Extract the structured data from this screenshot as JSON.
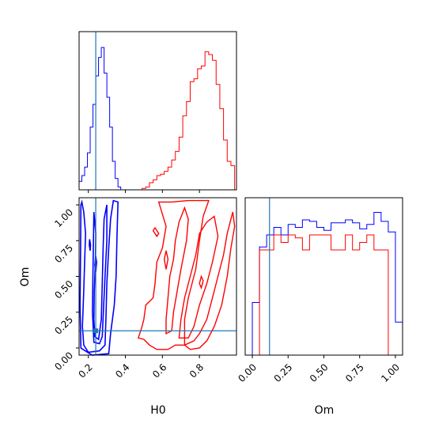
{
  "colors": {
    "series_a": "#0000ff",
    "series_b": "#ff0000",
    "truth": "#1f77b4"
  },
  "chart_data": [
    {
      "type": "histogram",
      "panel": "top-left",
      "x_variable": "H0",
      "xlim": [
        0.15,
        1.0
      ],
      "y_tick_labels_shown": false,
      "truth_line_x": 0.24,
      "bin_edges": [
        0.15,
        0.165,
        0.18,
        0.195,
        0.21,
        0.225,
        0.24,
        0.255,
        0.27,
        0.285,
        0.3,
        0.315,
        0.33,
        0.345,
        0.36,
        0.375
      ],
      "series": [
        {
          "color": "blue",
          "counts": [
            0.06,
            0.1,
            0.16,
            0.26,
            0.44,
            0.6,
            0.8,
            0.93,
            1.0,
            0.82,
            0.65,
            0.44,
            0.2,
            0.08,
            0.02
          ]
        },
        {
          "color": "red",
          "bin_edges": [
            0.49,
            0.51,
            0.53,
            0.55,
            0.57,
            0.59,
            0.61,
            0.63,
            0.65,
            0.67,
            0.69,
            0.71,
            0.73,
            0.75,
            0.77,
            0.79,
            0.81,
            0.83,
            0.85,
            0.87,
            0.89,
            0.91,
            0.93,
            0.95,
            0.97,
            0.99
          ],
          "counts": [
            0.01,
            0.02,
            0.05,
            0.07,
            0.1,
            0.11,
            0.13,
            0.16,
            0.21,
            0.27,
            0.37,
            0.52,
            0.62,
            0.76,
            0.78,
            0.85,
            0.87,
            0.97,
            0.95,
            0.91,
            0.74,
            0.57,
            0.35,
            0.2,
            0.17
          ]
        }
      ]
    },
    {
      "type": "contour",
      "panel": "bottom-left",
      "xlabel": "H0",
      "ylabel": "Om",
      "xlim": [
        0.15,
        1.0
      ],
      "ylim": [
        -0.05,
        1.05
      ],
      "x_ticks": [
        0.2,
        0.4,
        0.6,
        0.8
      ],
      "x_tick_labels": [
        "0.2",
        "0.4",
        "0.6",
        "0.8"
      ],
      "y_ticks": [
        0.0,
        0.25,
        0.5,
        0.75,
        1.0
      ],
      "y_tick_labels": [
        "0.00",
        "0.25",
        "0.50",
        "0.75",
        "1.00"
      ],
      "truth_point": [
        0.24,
        0.12
      ],
      "series": [
        {
          "color": "blue",
          "region": {
            "H0": [
              0.16,
              0.36
            ],
            "Om": [
              -0.03,
              1.03
            ]
          }
        },
        {
          "color": "red",
          "region": {
            "H0": [
              0.47,
              0.99
            ],
            "Om": [
              -0.01,
              1.03
            ]
          }
        }
      ]
    },
    {
      "type": "histogram",
      "panel": "bottom-right",
      "xlabel": "Om",
      "xlim": [
        -0.05,
        1.05
      ],
      "x_ticks": [
        0.0,
        0.25,
        0.5,
        0.75,
        1.0
      ],
      "x_tick_labels": [
        "0.00",
        "0.25",
        "0.50",
        "0.75",
        "1.00"
      ],
      "truth_line_x": 0.12,
      "bin_edges": [
        -0.05,
        0.0,
        0.05,
        0.1,
        0.15,
        0.2,
        0.25,
        0.3,
        0.35,
        0.4,
        0.45,
        0.5,
        0.55,
        0.6,
        0.65,
        0.7,
        0.75,
        0.8,
        0.85,
        0.9,
        0.95,
        1.0,
        1.05
      ],
      "series": [
        {
          "color": "blue",
          "counts": [
            0.0,
            0.35,
            0.72,
            0.8,
            0.85,
            0.8,
            0.87,
            0.85,
            0.9,
            0.89,
            0.85,
            0.83,
            0.88,
            0.88,
            0.9,
            0.88,
            0.84,
            0.87,
            0.95,
            0.89,
            0.82,
            0.22
          ]
        },
        {
          "color": "red",
          "counts": [
            0.0,
            0.0,
            0.7,
            0.7,
            0.8,
            0.75,
            0.8,
            0.78,
            0.7,
            0.8,
            0.8,
            0.8,
            0.7,
            0.7,
            0.8,
            0.7,
            0.75,
            0.8,
            0.7,
            0.7,
            0.0,
            0.0
          ]
        }
      ]
    }
  ]
}
